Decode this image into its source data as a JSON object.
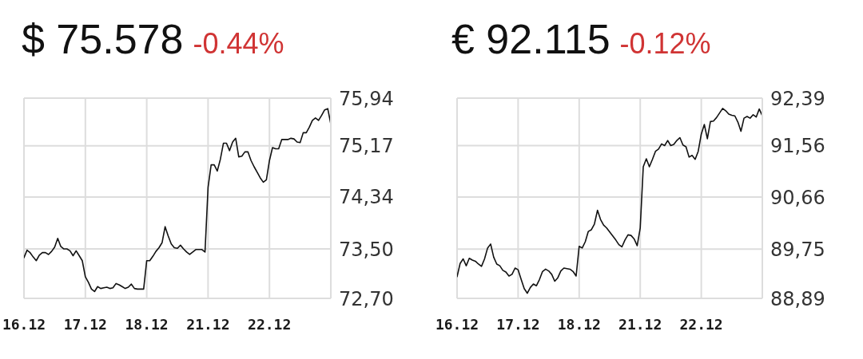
{
  "chart_data": [
    {
      "type": "line",
      "title": "$ 75.578",
      "subtitle": "-0.44%",
      "categories": [
        "16.12",
        null,
        null,
        null,
        null,
        null,
        null,
        null,
        null,
        null,
        null,
        null,
        null,
        null,
        null,
        null,
        null,
        null,
        null,
        null,
        "17.12",
        null,
        null,
        null,
        null,
        null,
        null,
        null,
        null,
        null,
        null,
        null,
        null,
        null,
        null,
        null,
        null,
        null,
        null,
        null,
        "18.12",
        null,
        null,
        null,
        null,
        null,
        null,
        null,
        null,
        null,
        null,
        null,
        null,
        null,
        null,
        null,
        null,
        null,
        null,
        null,
        "21.12",
        null,
        null,
        null,
        null,
        null,
        null,
        null,
        null,
        null,
        null,
        null,
        null,
        null,
        null,
        null,
        null,
        null,
        null,
        null,
        "22.12",
        null,
        null,
        null,
        null,
        null,
        null,
        null,
        null,
        null,
        null,
        null,
        null,
        null,
        null,
        null,
        null,
        null,
        null,
        null,
        null
      ],
      "series": [
        {
          "color": "#111111",
          "values": [
            73.36,
            73.48,
            73.44,
            73.37,
            73.31,
            73.4,
            73.44,
            73.44,
            73.41,
            73.46,
            73.53,
            73.67,
            73.54,
            73.5,
            73.5,
            73.47,
            73.39,
            73.47,
            73.39,
            73.31,
            73.05,
            72.96,
            72.85,
            72.81,
            72.89,
            72.86,
            72.87,
            72.88,
            72.86,
            72.87,
            72.94,
            72.92,
            72.89,
            72.86,
            72.88,
            72.93,
            72.86,
            72.85,
            72.85,
            72.85,
            73.31,
            73.31,
            73.38,
            73.46,
            73.52,
            73.6,
            73.86,
            73.71,
            73.58,
            73.52,
            73.51,
            73.56,
            73.5,
            73.45,
            73.41,
            73.45,
            73.49,
            73.49,
            73.49,
            73.45,
            74.5,
            74.86,
            74.86,
            74.76,
            74.95,
            75.21,
            75.21,
            75.09,
            75.23,
            75.29,
            74.99,
            75.0,
            75.07,
            75.07,
            74.93,
            74.83,
            74.74,
            74.65,
            74.58,
            74.62,
            74.93,
            75.14,
            75.12,
            75.12,
            75.27,
            75.27,
            75.27,
            75.29,
            75.28,
            75.23,
            75.22,
            75.38,
            75.38,
            75.47,
            75.58,
            75.62,
            75.58,
            75.66,
            75.75,
            75.77,
            75.52
          ]
        }
      ],
      "ylim": [
        72.7,
        75.94
      ],
      "yticks": [
        {
          "value": 72.7,
          "label": "72,70"
        },
        {
          "value": 73.5,
          "label": "73,50"
        },
        {
          "value": 74.34,
          "label": "74,34"
        },
        {
          "value": 75.17,
          "label": "75,17"
        },
        {
          "value": 75.94,
          "label": "75,94"
        }
      ],
      "grid": true
    },
    {
      "type": "line",
      "title": "€ 92.115",
      "subtitle": "-0.12%",
      "categories": [
        "16.12",
        null,
        null,
        null,
        null,
        null,
        null,
        null,
        null,
        null,
        null,
        null,
        null,
        null,
        null,
        null,
        null,
        null,
        null,
        null,
        "17.12",
        null,
        null,
        null,
        null,
        null,
        null,
        null,
        null,
        null,
        null,
        null,
        null,
        null,
        null,
        null,
        null,
        null,
        null,
        null,
        "18.12",
        null,
        null,
        null,
        null,
        null,
        null,
        null,
        null,
        null,
        null,
        null,
        null,
        null,
        null,
        null,
        null,
        null,
        null,
        null,
        "21.12",
        null,
        null,
        null,
        null,
        null,
        null,
        null,
        null,
        null,
        null,
        null,
        null,
        null,
        null,
        null,
        null,
        null,
        null,
        null,
        "22.12",
        null,
        null,
        null,
        null,
        null,
        null,
        null,
        null,
        null,
        null,
        null,
        null,
        null,
        null,
        null,
        null,
        null,
        null,
        null,
        null
      ],
      "series": [
        {
          "color": "#111111",
          "values": [
            89.27,
            89.5,
            89.58,
            89.46,
            89.59,
            89.56,
            89.54,
            89.49,
            89.45,
            89.58,
            89.77,
            89.84,
            89.61,
            89.49,
            89.46,
            89.38,
            89.35,
            89.28,
            89.31,
            89.42,
            89.39,
            89.22,
            89.06,
            88.98,
            89.08,
            89.14,
            89.11,
            89.22,
            89.36,
            89.4,
            89.37,
            89.31,
            89.19,
            89.25,
            89.37,
            89.42,
            89.41,
            89.4,
            89.36,
            89.28,
            89.8,
            89.77,
            89.88,
            90.06,
            90.09,
            90.19,
            90.43,
            90.27,
            90.17,
            90.12,
            90.05,
            89.98,
            89.91,
            89.83,
            89.79,
            89.91,
            90.0,
            89.99,
            89.93,
            89.81,
            90.12,
            91.19,
            91.33,
            91.19,
            91.32,
            91.46,
            91.5,
            91.59,
            91.56,
            91.65,
            91.56,
            91.58,
            91.65,
            91.7,
            91.57,
            91.54,
            91.36,
            91.39,
            91.32,
            91.46,
            91.76,
            91.93,
            91.68,
            91.98,
            91.99,
            92.05,
            92.13,
            92.21,
            92.17,
            92.11,
            92.09,
            92.08,
            91.97,
            91.81,
            92.04,
            92.07,
            92.04,
            92.1,
            92.06,
            92.2,
            92.08
          ]
        }
      ],
      "ylim": [
        88.89,
        92.39
      ],
      "yticks": [
        {
          "value": 88.89,
          "label": "88,89"
        },
        {
          "value": 89.75,
          "label": "89,75"
        },
        {
          "value": 90.66,
          "label": "90,66"
        },
        {
          "value": 91.56,
          "label": "91,56"
        },
        {
          "value": 92.39,
          "label": "92,39"
        }
      ],
      "grid": true
    }
  ]
}
